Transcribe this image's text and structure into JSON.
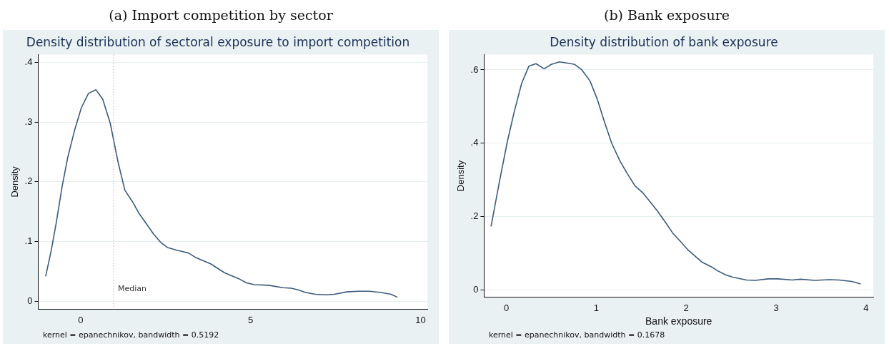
{
  "chart_data": [
    {
      "type": "line",
      "title": "(a) Import competition by sector",
      "subtitle": "Density distribution of sectoral exposure to import competition",
      "ylabel": "Density",
      "x": [
        -1.03,
        -0.87,
        -0.72,
        -0.54,
        -0.38,
        -0.18,
        0.02,
        0.23,
        0.45,
        0.65,
        0.87,
        1.1,
        1.3,
        1.51,
        1.72,
        2.14,
        2.35,
        2.56,
        2.81,
        3.17,
        3.4,
        3.82,
        4.23,
        4.65,
        4.88,
        5.11,
        5.53,
        5.95,
        6.2,
        6.41,
        6.62,
        6.91,
        7.21,
        7.46,
        7.83,
        8.17,
        8.5,
        8.84,
        9.13,
        9.32
      ],
      "series": [
        {
          "color": "#3a5a7c",
          "values": [
            0.042,
            0.084,
            0.131,
            0.194,
            0.241,
            0.286,
            0.324,
            0.348,
            0.354,
            0.338,
            0.298,
            0.233,
            0.186,
            0.168,
            0.147,
            0.113,
            0.099,
            0.09,
            0.086,
            0.081,
            0.073,
            0.063,
            0.048,
            0.038,
            0.031,
            0.028,
            0.027,
            0.023,
            0.022,
            0.019,
            0.015,
            0.012,
            0.011,
            0.012,
            0.016,
            0.017,
            0.017,
            0.015,
            0.012,
            0.007
          ]
        }
      ],
      "xlim": [
        -1.25,
        10.2
      ],
      "ylim": [
        -0.013,
        0.413
      ],
      "xticks": [
        0,
        5,
        10
      ],
      "yticks": [
        0,
        {
          "value": 0.1,
          "label": ".1"
        },
        {
          "value": 0.2,
          "label": ".2"
        },
        {
          "value": 0.3,
          "label": ".3"
        },
        {
          "value": 0.4,
          "label": ".4"
        }
      ],
      "grid": "y",
      "marker": "none",
      "ref_lines": [
        {
          "axis": "x",
          "value": 0.97,
          "label": "Median",
          "color": "#e0a0b8",
          "line_style": "dotted"
        }
      ],
      "annotations": [
        "kernel = epanechnikov, bandwidth = 0.5192"
      ]
    },
    {
      "type": "line",
      "title": "(b) Bank exposure",
      "subtitle": "Density distribution of bank exposure",
      "xlabel": "Bank exposure",
      "ylabel": "Density",
      "x": [
        -0.17,
        -0.08,
        0.01,
        0.085,
        0.17,
        0.25,
        0.33,
        0.42,
        0.5,
        0.59,
        0.67,
        0.76,
        0.84,
        0.93,
        1.01,
        1.09,
        1.17,
        1.26,
        1.34,
        1.43,
        1.52,
        1.59,
        1.68,
        1.77,
        1.85,
        1.94,
        2.02,
        2.18,
        2.28,
        2.35,
        2.43,
        2.51,
        2.67,
        2.77,
        2.91,
        3.02,
        3.18,
        3.27,
        3.43,
        3.59,
        3.7,
        3.84,
        3.94
      ],
      "series": [
        {
          "color": "#3a5a7c",
          "values": [
            0.173,
            0.291,
            0.403,
            0.483,
            0.563,
            0.61,
            0.617,
            0.603,
            0.615,
            0.622,
            0.619,
            0.615,
            0.6,
            0.57,
            0.521,
            0.459,
            0.401,
            0.353,
            0.319,
            0.284,
            0.264,
            0.243,
            0.215,
            0.184,
            0.155,
            0.131,
            0.109,
            0.075,
            0.063,
            0.052,
            0.042,
            0.035,
            0.027,
            0.026,
            0.03,
            0.03,
            0.027,
            0.029,
            0.026,
            0.028,
            0.027,
            0.023,
            0.016
          ]
        }
      ],
      "xlim": [
        -0.247,
        4.08
      ],
      "ylim": [
        -0.02,
        0.642
      ],
      "xticks": [
        0,
        1,
        2,
        3,
        4
      ],
      "yticks": [
        0,
        {
          "value": 0.2,
          "label": ".2"
        },
        {
          "value": 0.4,
          "label": ".4"
        },
        {
          "value": 0.6,
          "label": ".6"
        }
      ],
      "grid": "y",
      "marker": "none",
      "annotations": [
        "kernel = epanechnikov, bandwidth = 0.1678"
      ]
    }
  ]
}
